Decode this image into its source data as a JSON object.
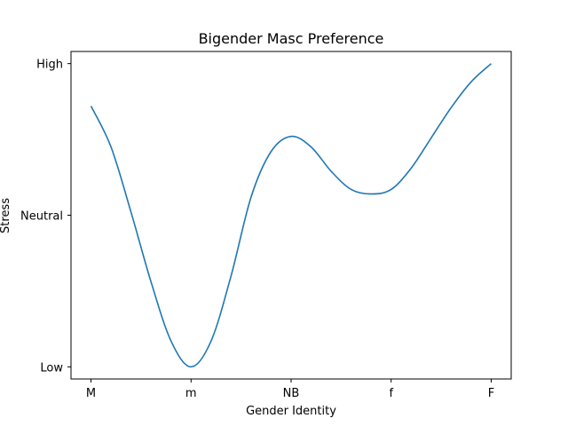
{
  "chart_data": {
    "type": "line",
    "title": "Bigender Masc Preference",
    "xlabel": "Gender Identity",
    "ylabel": "Stress",
    "x_tick_labels": [
      "M",
      "m",
      "NB",
      "f",
      "F"
    ],
    "y_tick_labels": [
      "Low",
      "Neutral",
      "High"
    ],
    "xlim": [
      -0.2,
      4.2
    ],
    "ylim": [
      -0.08,
      2.08
    ],
    "grid": false,
    "series": [
      {
        "color": "#1f77b4",
        "points": [
          {
            "x": 0.0,
            "y": 1.72
          },
          {
            "x": 0.2,
            "y": 1.45
          },
          {
            "x": 0.4,
            "y": 1.02
          },
          {
            "x": 0.6,
            "y": 0.56
          },
          {
            "x": 0.8,
            "y": 0.17
          },
          {
            "x": 1.0,
            "y": 0.0
          },
          {
            "x": 1.2,
            "y": 0.17
          },
          {
            "x": 1.4,
            "y": 0.6
          },
          {
            "x": 1.6,
            "y": 1.12
          },
          {
            "x": 1.8,
            "y": 1.42
          },
          {
            "x": 2.0,
            "y": 1.52
          },
          {
            "x": 2.2,
            "y": 1.45
          },
          {
            "x": 2.4,
            "y": 1.29
          },
          {
            "x": 2.6,
            "y": 1.17
          },
          {
            "x": 2.8,
            "y": 1.14
          },
          {
            "x": 3.0,
            "y": 1.17
          },
          {
            "x": 3.2,
            "y": 1.31
          },
          {
            "x": 3.4,
            "y": 1.51
          },
          {
            "x": 3.6,
            "y": 1.71
          },
          {
            "x": 3.8,
            "y": 1.88
          },
          {
            "x": 4.0,
            "y": 2.0
          }
        ]
      }
    ]
  }
}
